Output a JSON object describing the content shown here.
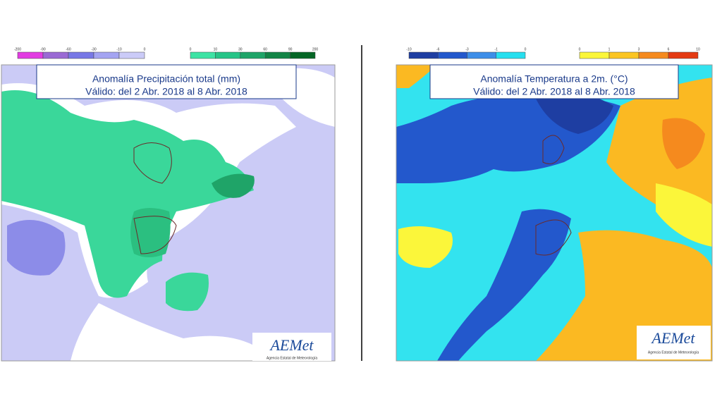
{
  "maps": [
    {
      "title": [
        "Anomalía Precipitación total (mm)",
        "Válido: del 2 Abr. 2018 al 8 Abr. 2018"
      ],
      "legend": [
        {
          "ticks": [
            "-200",
            "-90",
            "-60",
            "-30",
            "-10",
            "0"
          ],
          "colors": [
            "#e23ce2",
            "#9a6ad4",
            "#7878e6",
            "#a4a4f2",
            "#cbcbf8"
          ]
        },
        {
          "ticks": [
            "0",
            "10",
            "30",
            "60",
            "90",
            "200"
          ],
          "colors": [
            "#3de3a4",
            "#26c487",
            "#1fa468",
            "#128446",
            "#056626"
          ]
        }
      ],
      "logo": "AEMet",
      "logo_sub": "Agencia Estatal de Meteorología"
    },
    {
      "title": [
        "Anomalía Temperatura a 2m. (°C)",
        "Válido: del 2 Abr. 2018 al 8 Abr. 2018"
      ],
      "legend": [
        {
          "ticks": [
            "-10",
            "-6",
            "-3",
            "-1",
            "0"
          ],
          "colors": [
            "#1e3ea2",
            "#2358cc",
            "#3d8ee8",
            "#27dfef"
          ]
        },
        {
          "ticks": [
            "0",
            "1",
            "3",
            "6",
            "10"
          ],
          "colors": [
            "#fbf63a",
            "#fbc522",
            "#f58a1e",
            "#e43a12"
          ]
        }
      ],
      "logo": "AEMet",
      "logo_sub": "Agencia Estatal de Meteorología"
    }
  ]
}
